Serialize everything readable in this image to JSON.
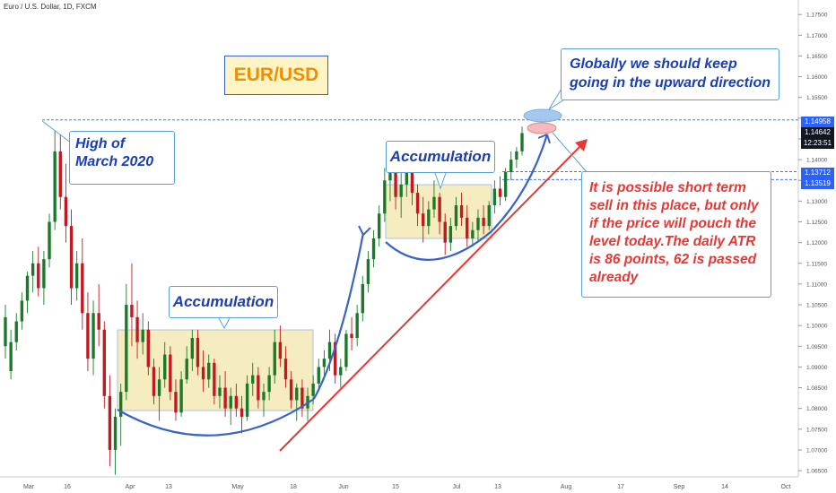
{
  "header": {
    "title": "Euro / U.S. Dollar, 1D, FXCM"
  },
  "title_box": {
    "text": "EUR/USD"
  },
  "annotations": {
    "high_march": "High of March 2020",
    "accumulation_1": "Accumulation",
    "accumulation_2": "Accumulation",
    "globally": "Globally we should keep going in the upward direction",
    "short_term": "It is possible short term sell in this place, but only if the price will pouch the level today.The daily ATR is 86 points, 62 is passed already"
  },
  "price_axis": {
    "ticks": [
      "1.17500",
      "1.17000",
      "1.16500",
      "1.16000",
      "1.15500",
      "1.15000",
      "1.14500",
      "1.14000",
      "1.13500",
      "1.13000",
      "1.12500",
      "1.12000",
      "1.11500",
      "1.11000",
      "1.10500",
      "1.10000",
      "1.09500",
      "1.09000",
      "1.08500",
      "1.08000",
      "1.07500",
      "1.07000",
      "1.06500"
    ],
    "tags": [
      {
        "text": "1.14958",
        "color": "#2962ff"
      },
      {
        "text": "1.14642",
        "color": "#131722"
      },
      {
        "text": "12:23:51",
        "color": "#131722"
      },
      {
        "text": "1.13712",
        "color": "#2962ff"
      },
      {
        "text": "1.13519",
        "color": "#2962ff"
      }
    ]
  },
  "time_axis": {
    "labels": [
      "Mar",
      "16",
      "Apr",
      "13",
      "May",
      "18",
      "Jun",
      "15",
      "Jul",
      "13",
      "Aug",
      "17",
      "Sep",
      "14",
      "Oct"
    ]
  },
  "colors": {
    "up": "#1b7a2a",
    "down": "#c2181f",
    "line": "#3a63c4",
    "arrow": "#e53935",
    "box": "#f5ebb9"
  },
  "chart_data": {
    "type": "candlestick",
    "instrument": "EUR/USD",
    "timeframe": "1D",
    "ylim": [
      1.0635,
      1.1785
    ],
    "levels": [
      1.14958,
      1.13712,
      1.13519
    ],
    "last_price": 1.14642,
    "candles": [
      [
        1.089,
        1.099,
        1.087,
        1.096
      ],
      [
        1.096,
        1.103,
        1.094,
        1.101
      ],
      [
        1.101,
        1.108,
        1.099,
        1.106
      ],
      [
        1.106,
        1.113,
        1.103,
        1.112
      ],
      [
        1.112,
        1.118,
        1.108,
        1.115
      ],
      [
        1.115,
        1.119,
        1.107,
        1.109
      ],
      [
        1.109,
        1.118,
        1.105,
        1.116
      ],
      [
        1.116,
        1.127,
        1.114,
        1.125
      ],
      [
        1.125,
        1.147,
        1.123,
        1.142
      ],
      [
        1.142,
        1.146,
        1.128,
        1.131
      ],
      [
        1.131,
        1.139,
        1.12,
        1.124
      ],
      [
        1.124,
        1.128,
        1.105,
        1.109
      ],
      [
        1.109,
        1.118,
        1.106,
        1.115
      ],
      [
        1.115,
        1.121,
        1.099,
        1.103
      ],
      [
        1.103,
        1.108,
        1.089,
        1.092
      ],
      [
        1.092,
        1.106,
        1.088,
        1.103
      ],
      [
        1.103,
        1.11,
        1.095,
        1.099
      ],
      [
        1.099,
        1.101,
        1.08,
        1.083
      ],
      [
        1.083,
        1.088,
        1.066,
        1.07
      ],
      [
        1.07,
        1.08,
        1.064,
        1.078
      ],
      [
        1.078,
        1.086,
        1.071,
        1.084
      ],
      [
        1.084,
        1.11,
        1.082,
        1.105
      ],
      [
        1.105,
        1.115,
        1.095,
        1.102
      ],
      [
        1.102,
        1.106,
        1.092,
        1.096
      ],
      [
        1.096,
        1.103,
        1.093,
        1.099
      ],
      [
        1.099,
        1.101,
        1.088,
        1.09
      ],
      [
        1.09,
        1.092,
        1.081,
        1.083
      ],
      [
        1.083,
        1.09,
        1.077,
        1.087
      ],
      [
        1.087,
        1.096,
        1.085,
        1.093
      ],
      [
        1.093,
        1.095,
        1.082,
        1.084
      ],
      [
        1.084,
        1.087,
        1.077,
        1.079
      ],
      [
        1.079,
        1.089,
        1.078,
        1.087
      ],
      [
        1.087,
        1.095,
        1.086,
        1.092
      ],
      [
        1.092,
        1.099,
        1.089,
        1.097
      ],
      [
        1.097,
        1.099,
        1.088,
        1.09
      ],
      [
        1.09,
        1.094,
        1.084,
        1.087
      ],
      [
        1.087,
        1.093,
        1.085,
        1.091
      ],
      [
        1.091,
        1.092,
        1.081,
        1.083
      ],
      [
        1.083,
        1.088,
        1.08,
        1.085
      ],
      [
        1.085,
        1.089,
        1.078,
        1.08
      ],
      [
        1.08,
        1.085,
        1.076,
        1.083
      ],
      [
        1.083,
        1.086,
        1.078,
        1.08
      ],
      [
        1.08,
        1.083,
        1.074,
        1.078
      ],
      [
        1.078,
        1.088,
        1.077,
        1.086
      ],
      [
        1.086,
        1.091,
        1.083,
        1.088
      ],
      [
        1.088,
        1.09,
        1.08,
        1.082
      ],
      [
        1.082,
        1.086,
        1.078,
        1.084
      ],
      [
        1.084,
        1.09,
        1.082,
        1.088
      ],
      [
        1.088,
        1.099,
        1.086,
        1.096
      ],
      [
        1.096,
        1.1,
        1.09,
        1.092
      ],
      [
        1.092,
        1.095,
        1.085,
        1.087
      ],
      [
        1.087,
        1.089,
        1.08,
        1.082
      ],
      [
        1.082,
        1.086,
        1.077,
        1.085
      ],
      [
        1.085,
        1.087,
        1.078,
        1.08
      ],
      [
        1.08,
        1.085,
        1.077,
        1.083
      ],
      [
        1.083,
        1.088,
        1.081,
        1.086
      ],
      [
        1.086,
        1.092,
        1.084,
        1.09
      ],
      [
        1.09,
        1.094,
        1.087,
        1.092
      ],
      [
        1.092,
        1.099,
        1.089,
        1.096
      ],
      [
        1.096,
        1.098,
        1.086,
        1.088
      ],
      [
        1.088,
        1.092,
        1.085,
        1.09
      ],
      [
        1.09,
        1.099,
        1.089,
        1.098
      ],
      [
        1.098,
        1.102,
        1.094,
        1.097
      ],
      [
        1.097,
        1.105,
        1.095,
        1.103
      ],
      [
        1.103,
        1.112,
        1.101,
        1.11
      ],
      [
        1.11,
        1.118,
        1.108,
        1.116
      ],
      [
        1.116,
        1.123,
        1.114,
        1.121
      ],
      [
        1.121,
        1.129,
        1.119,
        1.127
      ],
      [
        1.127,
        1.138,
        1.125,
        1.135
      ],
      [
        1.135,
        1.142,
        1.13,
        1.139
      ],
      [
        1.139,
        1.14,
        1.128,
        1.131
      ],
      [
        1.131,
        1.137,
        1.126,
        1.134
      ],
      [
        1.134,
        1.142,
        1.131,
        1.139
      ],
      [
        1.139,
        1.141,
        1.129,
        1.132
      ],
      [
        1.132,
        1.134,
        1.124,
        1.127
      ],
      [
        1.127,
        1.131,
        1.12,
        1.124
      ],
      [
        1.124,
        1.13,
        1.122,
        1.128
      ],
      [
        1.128,
        1.135,
        1.126,
        1.131
      ],
      [
        1.131,
        1.132,
        1.122,
        1.125
      ],
      [
        1.125,
        1.127,
        1.117,
        1.12
      ],
      [
        1.12,
        1.126,
        1.118,
        1.124
      ],
      [
        1.124,
        1.131,
        1.123,
        1.129
      ],
      [
        1.129,
        1.132,
        1.124,
        1.126
      ],
      [
        1.126,
        1.129,
        1.119,
        1.121
      ],
      [
        1.121,
        1.125,
        1.119,
        1.123
      ],
      [
        1.123,
        1.128,
        1.12,
        1.126
      ],
      [
        1.126,
        1.129,
        1.122,
        1.124
      ],
      [
        1.124,
        1.13,
        1.123,
        1.129
      ],
      [
        1.129,
        1.135,
        1.127,
        1.133
      ],
      [
        1.133,
        1.136,
        1.129,
        1.131
      ],
      [
        1.131,
        1.138,
        1.13,
        1.137
      ],
      [
        1.137,
        1.142,
        1.135,
        1.14
      ],
      [
        1.14,
        1.143,
        1.138,
        1.142
      ],
      [
        1.142,
        1.148,
        1.141,
        1.1464
      ]
    ],
    "candles_early": [
      [
        1.095,
        1.105,
        1.092,
        1.102
      ]
    ]
  }
}
